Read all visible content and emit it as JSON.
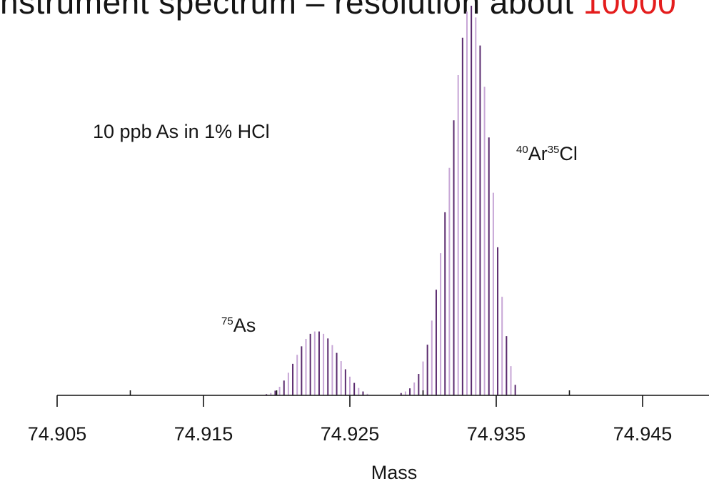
{
  "title": {
    "text_start": "nstrument spectrum",
    "text_mid": " – resolution about ",
    "text_highlight": "10000",
    "highlight_color": "#e41d1d"
  },
  "chart_data": {
    "type": "bar",
    "title": "",
    "xlabel": "Mass",
    "ylabel": "",
    "xlim": [
      74.905,
      74.95
    ],
    "ylim": [
      0,
      1.0
    ],
    "grid": false,
    "x_ticks_major": [
      "74.905",
      "74.915",
      "74.925",
      "74.935",
      "74.945"
    ],
    "x_ticks_minor": [
      74.91,
      74.92,
      74.93,
      74.94
    ],
    "bar_colors": [
      "#5a2a6e",
      "#c7a6d6"
    ],
    "annotations": [
      {
        "text": "10 ppb As in 1% HCl"
      },
      {
        "text": "Ar",
        "pre_sup": "40",
        "post_sup": "35",
        "suffix": "Cl"
      },
      {
        "text": "As",
        "pre_sup": "75"
      }
    ],
    "series": [
      {
        "x": [
          74.9193,
          74.9196,
          74.9199,
          74.9202,
          74.9205,
          74.9208,
          74.9211,
          74.9214,
          74.9217,
          74.922,
          74.9223,
          74.9226,
          74.9229,
          74.9232,
          74.9235,
          74.9238,
          74.9241,
          74.9244,
          74.9247,
          74.925,
          74.9253,
          74.9256,
          74.9259,
          74.9262
        ],
        "values": [
          0.003,
          0.006,
          0.012,
          0.022,
          0.038,
          0.058,
          0.081,
          0.104,
          0.126,
          0.145,
          0.158,
          0.164,
          0.164,
          0.158,
          0.146,
          0.129,
          0.109,
          0.088,
          0.067,
          0.048,
          0.032,
          0.019,
          0.01,
          0.004
        ]
      },
      {
        "x": [
          74.9285,
          74.9288,
          74.9291,
          74.9294,
          74.9297,
          74.93,
          74.9303,
          74.9306,
          74.9309,
          74.9312,
          74.9315,
          74.9318,
          74.9321,
          74.9324,
          74.9327,
          74.933,
          74.9333,
          74.9336,
          74.9339,
          74.9342,
          74.9345,
          74.9348,
          74.9351,
          74.9354,
          74.9357,
          74.936,
          74.9363
        ],
        "values": [
          0.006,
          0.01,
          0.018,
          0.033,
          0.055,
          0.087,
          0.13,
          0.192,
          0.271,
          0.365,
          0.47,
          0.584,
          0.706,
          0.822,
          0.918,
          0.985,
          1.0,
          0.97,
          0.898,
          0.792,
          0.662,
          0.52,
          0.38,
          0.253,
          0.152,
          0.075,
          0.027
        ]
      }
    ]
  }
}
